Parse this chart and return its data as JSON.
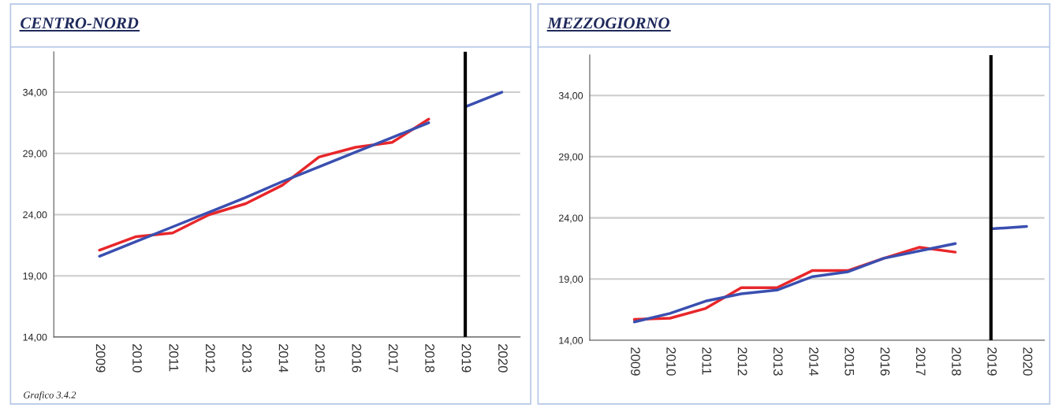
{
  "chart_data": [
    {
      "type": "line",
      "title": "CENTRO-NORD",
      "categories": [
        "2009",
        "2010",
        "2011",
        "2012",
        "2013",
        "2014",
        "2015",
        "2016",
        "2017",
        "2018",
        "2019",
        "2020"
      ],
      "series": [
        {
          "color": "#e8262a",
          "values": [
            21.1,
            22.2,
            22.5,
            24.0,
            24.9,
            26.4,
            28.7,
            29.5,
            29.9,
            31.8,
            null,
            null
          ]
        },
        {
          "color": "#3a4fb0",
          "values": [
            20.6,
            21.8,
            23.0,
            24.2,
            25.4,
            26.7,
            27.9,
            29.1,
            30.3,
            31.5,
            null,
            null
          ]
        },
        {
          "color": "#3a4fb0",
          "values": [
            null,
            null,
            null,
            null,
            null,
            null,
            null,
            null,
            null,
            null,
            32.8,
            34.0
          ]
        }
      ],
      "ylim": [
        14,
        37.3
      ],
      "yticks": [
        {
          "value": 14,
          "label": "14,00"
        },
        {
          "value": 19,
          "label": "19,00"
        },
        {
          "value": 24,
          "label": "24,00"
        },
        {
          "value": 29,
          "label": "29,00"
        },
        {
          "value": 34,
          "label": "34,00"
        }
      ],
      "ref_lines": [
        {
          "axis": "x",
          "value": "2019",
          "color": "#000000"
        }
      ],
      "grid": "y",
      "marker": "none",
      "line_style": "solid",
      "annotations": [
        "Grafico 3.4.2"
      ]
    },
    {
      "type": "line",
      "title": "MEZZOGIORNO",
      "categories": [
        "2009",
        "2010",
        "2011",
        "2012",
        "2013",
        "2014",
        "2015",
        "2016",
        "2017",
        "2018",
        "2019",
        "2020"
      ],
      "series": [
        {
          "color": "#e8262a",
          "values": [
            15.7,
            15.8,
            16.6,
            18.3,
            18.3,
            19.7,
            19.7,
            20.7,
            21.6,
            21.2,
            null,
            null
          ]
        },
        {
          "color": "#3a4fb0",
          "values": [
            15.5,
            16.2,
            17.2,
            17.8,
            18.1,
            19.2,
            19.6,
            20.7,
            21.3,
            21.9,
            null,
            null
          ]
        },
        {
          "color": "#3a4fb0",
          "values": [
            null,
            null,
            null,
            null,
            null,
            null,
            null,
            null,
            null,
            null,
            23.1,
            23.3
          ]
        }
      ],
      "ylim": [
        14,
        37.3
      ],
      "yticks": [
        {
          "value": 14,
          "label": "14,00"
        },
        {
          "value": 19,
          "label": "19,00"
        },
        {
          "value": 24,
          "label": "24,00"
        },
        {
          "value": 29,
          "label": "29,00"
        },
        {
          "value": 34,
          "label": "34,00"
        }
      ],
      "ref_lines": [
        {
          "axis": "x",
          "value": "2019",
          "color": "#000000"
        }
      ],
      "grid": "y",
      "marker": "none",
      "line_style": "solid"
    }
  ]
}
